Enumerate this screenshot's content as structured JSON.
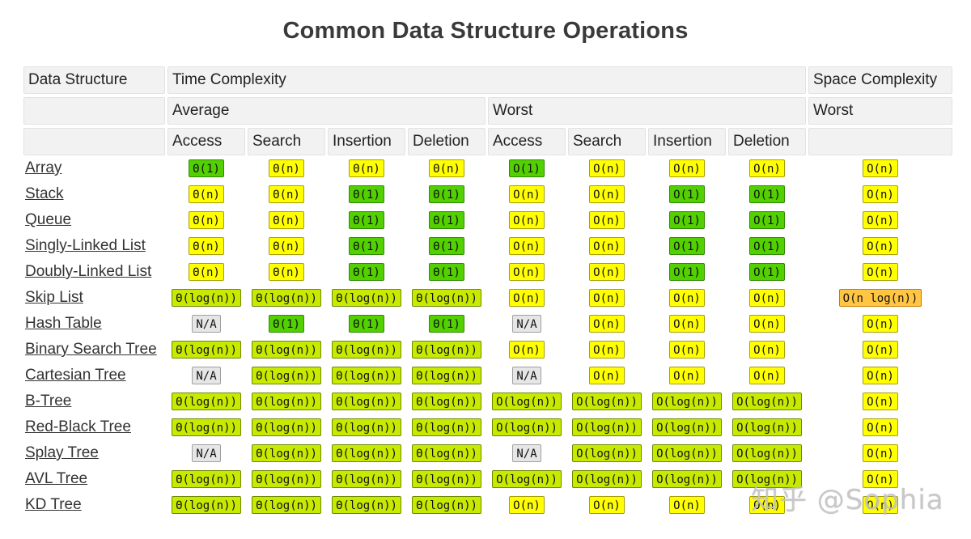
{
  "title": "Common Data Structure Operations",
  "headers": {
    "data_structure": "Data Structure",
    "time_complexity": "Time Complexity",
    "space_complexity": "Space Complexity",
    "average": "Average",
    "worst": "Worst",
    "space_worst": "Worst",
    "ops": [
      "Access",
      "Search",
      "Insertion",
      "Deletion",
      "Access",
      "Search",
      "Insertion",
      "Deletion"
    ]
  },
  "colors": {
    "good": "#53d000",
    "fair": "#c8ea00",
    "bad": "#ffff00",
    "worse": "#ffc543",
    "na": "#e6e6e6"
  },
  "rows": [
    {
      "name": "Array",
      "cells": [
        {
          "t": "Θ(1)",
          "c": "good"
        },
        {
          "t": "Θ(n)",
          "c": "bad"
        },
        {
          "t": "Θ(n)",
          "c": "bad"
        },
        {
          "t": "Θ(n)",
          "c": "bad"
        },
        {
          "t": "O(1)",
          "c": "good"
        },
        {
          "t": "O(n)",
          "c": "bad"
        },
        {
          "t": "O(n)",
          "c": "bad"
        },
        {
          "t": "O(n)",
          "c": "bad"
        },
        {
          "t": "O(n)",
          "c": "bad"
        }
      ]
    },
    {
      "name": "Stack",
      "cells": [
        {
          "t": "Θ(n)",
          "c": "bad"
        },
        {
          "t": "Θ(n)",
          "c": "bad"
        },
        {
          "t": "Θ(1)",
          "c": "good"
        },
        {
          "t": "Θ(1)",
          "c": "good"
        },
        {
          "t": "O(n)",
          "c": "bad"
        },
        {
          "t": "O(n)",
          "c": "bad"
        },
        {
          "t": "O(1)",
          "c": "good"
        },
        {
          "t": "O(1)",
          "c": "good"
        },
        {
          "t": "O(n)",
          "c": "bad"
        }
      ]
    },
    {
      "name": "Queue",
      "cells": [
        {
          "t": "Θ(n)",
          "c": "bad"
        },
        {
          "t": "Θ(n)",
          "c": "bad"
        },
        {
          "t": "Θ(1)",
          "c": "good"
        },
        {
          "t": "Θ(1)",
          "c": "good"
        },
        {
          "t": "O(n)",
          "c": "bad"
        },
        {
          "t": "O(n)",
          "c": "bad"
        },
        {
          "t": "O(1)",
          "c": "good"
        },
        {
          "t": "O(1)",
          "c": "good"
        },
        {
          "t": "O(n)",
          "c": "bad"
        }
      ]
    },
    {
      "name": "Singly-Linked List",
      "cells": [
        {
          "t": "Θ(n)",
          "c": "bad"
        },
        {
          "t": "Θ(n)",
          "c": "bad"
        },
        {
          "t": "Θ(1)",
          "c": "good"
        },
        {
          "t": "Θ(1)",
          "c": "good"
        },
        {
          "t": "O(n)",
          "c": "bad"
        },
        {
          "t": "O(n)",
          "c": "bad"
        },
        {
          "t": "O(1)",
          "c": "good"
        },
        {
          "t": "O(1)",
          "c": "good"
        },
        {
          "t": "O(n)",
          "c": "bad"
        }
      ]
    },
    {
      "name": "Doubly-Linked List",
      "cells": [
        {
          "t": "Θ(n)",
          "c": "bad"
        },
        {
          "t": "Θ(n)",
          "c": "bad"
        },
        {
          "t": "Θ(1)",
          "c": "good"
        },
        {
          "t": "Θ(1)",
          "c": "good"
        },
        {
          "t": "O(n)",
          "c": "bad"
        },
        {
          "t": "O(n)",
          "c": "bad"
        },
        {
          "t": "O(1)",
          "c": "good"
        },
        {
          "t": "O(1)",
          "c": "good"
        },
        {
          "t": "O(n)",
          "c": "bad"
        }
      ]
    },
    {
      "name": "Skip List",
      "cells": [
        {
          "t": "Θ(log(n))",
          "c": "fair"
        },
        {
          "t": "Θ(log(n))",
          "c": "fair"
        },
        {
          "t": "Θ(log(n))",
          "c": "fair"
        },
        {
          "t": "Θ(log(n))",
          "c": "fair"
        },
        {
          "t": "O(n)",
          "c": "bad"
        },
        {
          "t": "O(n)",
          "c": "bad"
        },
        {
          "t": "O(n)",
          "c": "bad"
        },
        {
          "t": "O(n)",
          "c": "bad"
        },
        {
          "t": "O(n log(n))",
          "c": "worse"
        }
      ]
    },
    {
      "name": "Hash Table",
      "cells": [
        {
          "t": "N/A",
          "c": "na"
        },
        {
          "t": "Θ(1)",
          "c": "good"
        },
        {
          "t": "Θ(1)",
          "c": "good"
        },
        {
          "t": "Θ(1)",
          "c": "good"
        },
        {
          "t": "N/A",
          "c": "na"
        },
        {
          "t": "O(n)",
          "c": "bad"
        },
        {
          "t": "O(n)",
          "c": "bad"
        },
        {
          "t": "O(n)",
          "c": "bad"
        },
        {
          "t": "O(n)",
          "c": "bad"
        }
      ]
    },
    {
      "name": "Binary Search Tree",
      "cells": [
        {
          "t": "Θ(log(n))",
          "c": "fair"
        },
        {
          "t": "Θ(log(n))",
          "c": "fair"
        },
        {
          "t": "Θ(log(n))",
          "c": "fair"
        },
        {
          "t": "Θ(log(n))",
          "c": "fair"
        },
        {
          "t": "O(n)",
          "c": "bad"
        },
        {
          "t": "O(n)",
          "c": "bad"
        },
        {
          "t": "O(n)",
          "c": "bad"
        },
        {
          "t": "O(n)",
          "c": "bad"
        },
        {
          "t": "O(n)",
          "c": "bad"
        }
      ]
    },
    {
      "name": "Cartesian Tree",
      "cells": [
        {
          "t": "N/A",
          "c": "na"
        },
        {
          "t": "Θ(log(n))",
          "c": "fair"
        },
        {
          "t": "Θ(log(n))",
          "c": "fair"
        },
        {
          "t": "Θ(log(n))",
          "c": "fair"
        },
        {
          "t": "N/A",
          "c": "na"
        },
        {
          "t": "O(n)",
          "c": "bad"
        },
        {
          "t": "O(n)",
          "c": "bad"
        },
        {
          "t": "O(n)",
          "c": "bad"
        },
        {
          "t": "O(n)",
          "c": "bad"
        }
      ]
    },
    {
      "name": "B-Tree",
      "cells": [
        {
          "t": "Θ(log(n))",
          "c": "fair"
        },
        {
          "t": "Θ(log(n))",
          "c": "fair"
        },
        {
          "t": "Θ(log(n))",
          "c": "fair"
        },
        {
          "t": "Θ(log(n))",
          "c": "fair"
        },
        {
          "t": "O(log(n))",
          "c": "fair"
        },
        {
          "t": "O(log(n))",
          "c": "fair"
        },
        {
          "t": "O(log(n))",
          "c": "fair"
        },
        {
          "t": "O(log(n))",
          "c": "fair"
        },
        {
          "t": "O(n)",
          "c": "bad"
        }
      ]
    },
    {
      "name": "Red-Black Tree",
      "cells": [
        {
          "t": "Θ(log(n))",
          "c": "fair"
        },
        {
          "t": "Θ(log(n))",
          "c": "fair"
        },
        {
          "t": "Θ(log(n))",
          "c": "fair"
        },
        {
          "t": "Θ(log(n))",
          "c": "fair"
        },
        {
          "t": "O(log(n))",
          "c": "fair"
        },
        {
          "t": "O(log(n))",
          "c": "fair"
        },
        {
          "t": "O(log(n))",
          "c": "fair"
        },
        {
          "t": "O(log(n))",
          "c": "fair"
        },
        {
          "t": "O(n)",
          "c": "bad"
        }
      ]
    },
    {
      "name": "Splay Tree",
      "cells": [
        {
          "t": "N/A",
          "c": "na"
        },
        {
          "t": "Θ(log(n))",
          "c": "fair"
        },
        {
          "t": "Θ(log(n))",
          "c": "fair"
        },
        {
          "t": "Θ(log(n))",
          "c": "fair"
        },
        {
          "t": "N/A",
          "c": "na"
        },
        {
          "t": "O(log(n))",
          "c": "fair"
        },
        {
          "t": "O(log(n))",
          "c": "fair"
        },
        {
          "t": "O(log(n))",
          "c": "fair"
        },
        {
          "t": "O(n)",
          "c": "bad"
        }
      ]
    },
    {
      "name": "AVL Tree",
      "cells": [
        {
          "t": "Θ(log(n))",
          "c": "fair"
        },
        {
          "t": "Θ(log(n))",
          "c": "fair"
        },
        {
          "t": "Θ(log(n))",
          "c": "fair"
        },
        {
          "t": "Θ(log(n))",
          "c": "fair"
        },
        {
          "t": "O(log(n))",
          "c": "fair"
        },
        {
          "t": "O(log(n))",
          "c": "fair"
        },
        {
          "t": "O(log(n))",
          "c": "fair"
        },
        {
          "t": "O(log(n))",
          "c": "fair"
        },
        {
          "t": "O(n)",
          "c": "bad"
        }
      ]
    },
    {
      "name": "KD Tree",
      "cells": [
        {
          "t": "Θ(log(n))",
          "c": "fair"
        },
        {
          "t": "Θ(log(n))",
          "c": "fair"
        },
        {
          "t": "Θ(log(n))",
          "c": "fair"
        },
        {
          "t": "Θ(log(n))",
          "c": "fair"
        },
        {
          "t": "O(n)",
          "c": "bad"
        },
        {
          "t": "O(n)",
          "c": "bad"
        },
        {
          "t": "O(n)",
          "c": "bad"
        },
        {
          "t": "O(n)",
          "c": "bad"
        },
        {
          "t": "O(n)",
          "c": "bad"
        }
      ]
    }
  ],
  "watermark": "知乎 @Sophia"
}
